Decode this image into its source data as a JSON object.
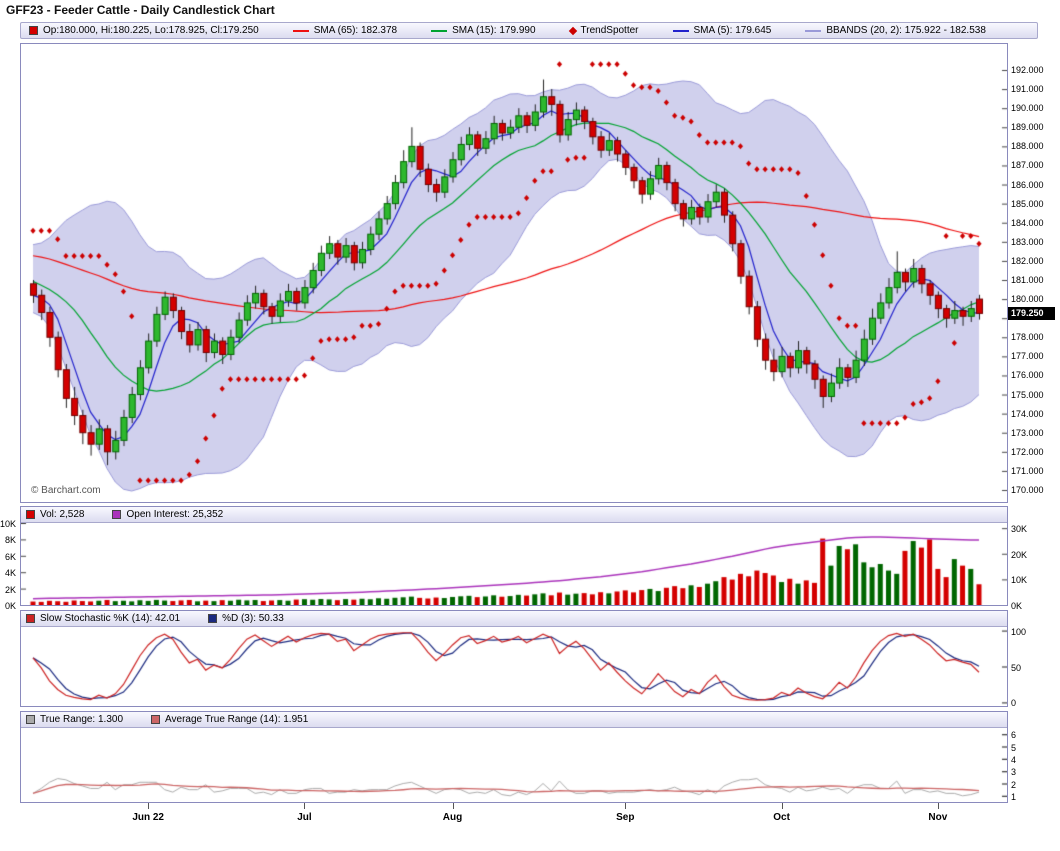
{
  "title": "GFF23 - Feeder Cattle - Daily Candlestick Chart",
  "watermark": "© Barchart.com",
  "legend": {
    "ohlc_label": "Op:180.000, Hi:180.225, Lo:178.925, Cl:179.250",
    "sma65_label": "SMA (65): 182.378",
    "sma15_label": "SMA (15): 179.990",
    "trendspotter_label": "TrendSpotter",
    "sma5_label": "SMA (5): 179.645",
    "bbands_label": "BBANDS (20, 2): 175.922 - 182.538"
  },
  "panels": {
    "volume": {
      "vol_label": "Vol: 2,528",
      "oi_label": "Open Interest: 25,352"
    },
    "stochastic": {
      "k_label": "Slow Stochastic %K (14): 42.01",
      "d_label": "%D (3): 50.33"
    },
    "truerange": {
      "tr_label": "True Range: 1.300",
      "atr_label": "Average True Range (14): 1.951"
    }
  },
  "colors": {
    "up": "#2eb82e",
    "up_border": "#006600",
    "down": "#d40000",
    "down_border": "#700000",
    "wick": "#222222",
    "sma65": "#ee1111",
    "sma15": "#00a330",
    "sma5": "#2222cc",
    "bband_fill": "rgba(150,150,215,0.45)",
    "bband_edge": "#9a9ad8",
    "trendspotter": "#cc0000",
    "open_interest": "#aa33bb",
    "stoch_k": "#cc2222",
    "stoch_d": "#1b2a80",
    "tr": "#aaaaaa",
    "atr": "#cc6666",
    "last_price_bg": "#000000",
    "last_price_fg": "#ffffff"
  },
  "chart_data": {
    "type": "candlestick",
    "title": "GFF23 - Feeder Cattle - Daily Candlestick Chart",
    "x_axis": {
      "labels": [
        "Jun 22",
        "Jul",
        "Aug",
        "Sep",
        "Oct",
        "Nov"
      ],
      "tick_indices": [
        14,
        33,
        51,
        72,
        91,
        110
      ]
    },
    "price_axis": {
      "min": 170,
      "max": 192,
      "step": 1,
      "label_decimals": 3,
      "last_price": "179.250",
      "last_price_value": 179.25
    },
    "indicators_last": {
      "sma65": 182.378,
      "sma15": 179.99,
      "sma5": 179.645,
      "bb_upper": 182.538,
      "bb_lower": 175.922
    },
    "ohlc": [
      [
        180.8,
        181.0,
        179.8,
        180.2
      ],
      [
        180.2,
        180.5,
        178.9,
        179.3
      ],
      [
        179.3,
        179.6,
        177.5,
        178.0
      ],
      [
        178.0,
        178.3,
        175.9,
        176.3
      ],
      [
        176.3,
        176.6,
        174.3,
        174.8
      ],
      [
        174.8,
        175.4,
        173.4,
        173.9
      ],
      [
        173.9,
        174.2,
        172.4,
        173.0
      ],
      [
        173.0,
        173.4,
        171.8,
        172.4
      ],
      [
        172.4,
        173.7,
        172.1,
        173.2
      ],
      [
        173.2,
        173.4,
        171.3,
        172.0
      ],
      [
        172.0,
        173.1,
        171.6,
        172.6
      ],
      [
        172.6,
        174.2,
        172.3,
        173.8
      ],
      [
        173.8,
        175.4,
        173.5,
        175.0
      ],
      [
        175.0,
        176.8,
        174.7,
        176.4
      ],
      [
        176.4,
        178.2,
        176.1,
        177.8
      ],
      [
        177.8,
        179.6,
        177.5,
        179.2
      ],
      [
        179.2,
        180.4,
        178.9,
        180.1
      ],
      [
        180.1,
        180.3,
        179.0,
        179.4
      ],
      [
        179.4,
        179.6,
        177.9,
        178.3
      ],
      [
        178.3,
        178.7,
        177.2,
        177.6
      ],
      [
        177.6,
        178.8,
        177.3,
        178.4
      ],
      [
        178.4,
        178.6,
        176.7,
        177.2
      ],
      [
        177.2,
        178.2,
        176.9,
        177.8
      ],
      [
        177.8,
        178.0,
        176.6,
        177.1
      ],
      [
        177.1,
        178.4,
        176.8,
        178.0
      ],
      [
        178.0,
        179.3,
        177.7,
        178.9
      ],
      [
        178.9,
        180.2,
        178.6,
        179.8
      ],
      [
        179.8,
        180.7,
        179.5,
        180.3
      ],
      [
        180.3,
        180.5,
        179.2,
        179.6
      ],
      [
        179.6,
        179.8,
        178.7,
        179.1
      ],
      [
        179.1,
        180.3,
        178.8,
        179.9
      ],
      [
        179.9,
        180.8,
        179.6,
        180.4
      ],
      [
        180.4,
        180.6,
        179.4,
        179.8
      ],
      [
        179.8,
        181.0,
        179.5,
        180.6
      ],
      [
        180.6,
        181.9,
        180.3,
        181.5
      ],
      [
        181.5,
        182.8,
        181.2,
        182.4
      ],
      [
        182.4,
        183.3,
        182.1,
        182.9
      ],
      [
        182.9,
        183.1,
        181.8,
        182.2
      ],
      [
        182.2,
        183.2,
        181.9,
        182.8
      ],
      [
        182.8,
        183.0,
        181.5,
        181.9
      ],
      [
        181.9,
        183.0,
        181.6,
        182.6
      ],
      [
        182.6,
        183.8,
        182.3,
        183.4
      ],
      [
        183.4,
        184.6,
        183.1,
        184.2
      ],
      [
        184.2,
        185.4,
        183.9,
        185.0
      ],
      [
        185.0,
        186.5,
        184.7,
        186.1
      ],
      [
        186.1,
        187.8,
        185.8,
        187.2
      ],
      [
        187.2,
        189.0,
        186.9,
        188.0
      ],
      [
        188.0,
        188.2,
        186.4,
        186.8
      ],
      [
        186.8,
        187.1,
        185.6,
        186.0
      ],
      [
        186.0,
        186.3,
        185.1,
        185.6
      ],
      [
        185.6,
        186.8,
        185.3,
        186.4
      ],
      [
        186.4,
        187.7,
        186.1,
        187.3
      ],
      [
        187.3,
        188.5,
        187.0,
        188.1
      ],
      [
        188.1,
        189.0,
        187.8,
        188.6
      ],
      [
        188.6,
        188.8,
        187.5,
        187.9
      ],
      [
        187.9,
        188.8,
        187.6,
        188.4
      ],
      [
        188.4,
        189.6,
        188.1,
        189.2
      ],
      [
        189.2,
        189.4,
        188.3,
        188.7
      ],
      [
        188.7,
        189.4,
        188.4,
        189.0
      ],
      [
        189.0,
        190.0,
        188.7,
        189.6
      ],
      [
        189.6,
        189.8,
        188.7,
        189.1
      ],
      [
        189.1,
        190.2,
        188.8,
        189.8
      ],
      [
        189.8,
        191.5,
        189.5,
        190.6
      ],
      [
        190.6,
        191.0,
        189.6,
        190.2
      ],
      [
        190.2,
        190.4,
        188.2,
        188.6
      ],
      [
        188.6,
        189.8,
        188.3,
        189.4
      ],
      [
        189.4,
        190.3,
        189.1,
        189.9
      ],
      [
        189.9,
        190.1,
        188.9,
        189.3
      ],
      [
        189.3,
        189.5,
        188.1,
        188.5
      ],
      [
        188.5,
        188.8,
        187.4,
        187.8
      ],
      [
        187.8,
        188.7,
        187.5,
        188.3
      ],
      [
        188.3,
        188.5,
        187.2,
        187.6
      ],
      [
        187.6,
        187.8,
        186.5,
        186.9
      ],
      [
        186.9,
        187.1,
        185.8,
        186.2
      ],
      [
        186.2,
        186.4,
        185.0,
        185.5
      ],
      [
        185.5,
        186.7,
        185.2,
        186.3
      ],
      [
        186.3,
        187.4,
        186.0,
        187.0
      ],
      [
        187.0,
        187.2,
        185.7,
        186.1
      ],
      [
        186.1,
        186.3,
        184.6,
        185.0
      ],
      [
        185.0,
        185.2,
        183.8,
        184.2
      ],
      [
        184.2,
        185.2,
        183.9,
        184.8
      ],
      [
        184.8,
        185.0,
        183.9,
        184.3
      ],
      [
        184.3,
        185.5,
        184.0,
        185.1
      ],
      [
        185.1,
        186.0,
        184.8,
        185.6
      ],
      [
        185.6,
        185.8,
        184.0,
        184.4
      ],
      [
        184.4,
        184.6,
        182.5,
        182.9
      ],
      [
        182.9,
        183.1,
        180.8,
        181.2
      ],
      [
        181.2,
        181.5,
        179.2,
        179.6
      ],
      [
        179.6,
        179.9,
        177.5,
        177.9
      ],
      [
        177.9,
        178.2,
        176.3,
        176.8
      ],
      [
        176.8,
        177.4,
        175.7,
        176.2
      ],
      [
        176.2,
        177.5,
        175.9,
        177.0
      ],
      [
        177.0,
        177.2,
        175.9,
        176.4
      ],
      [
        176.4,
        177.8,
        176.1,
        177.3
      ],
      [
        177.3,
        177.5,
        176.1,
        176.6
      ],
      [
        176.6,
        176.8,
        175.3,
        175.8
      ],
      [
        175.8,
        176.0,
        174.3,
        174.9
      ],
      [
        174.9,
        176.1,
        174.6,
        175.6
      ],
      [
        175.6,
        176.9,
        175.3,
        176.4
      ],
      [
        176.4,
        176.6,
        175.4,
        175.9
      ],
      [
        175.9,
        177.3,
        175.6,
        176.8
      ],
      [
        176.8,
        178.4,
        176.5,
        177.9
      ],
      [
        177.9,
        179.5,
        177.6,
        179.0
      ],
      [
        179.0,
        180.3,
        178.7,
        179.8
      ],
      [
        179.8,
        181.1,
        179.5,
        180.6
      ],
      [
        180.6,
        182.5,
        180.3,
        181.4
      ],
      [
        181.4,
        181.6,
        180.4,
        180.9
      ],
      [
        180.9,
        182.1,
        180.6,
        181.6
      ],
      [
        181.6,
        181.8,
        180.3,
        180.8
      ],
      [
        180.8,
        181.0,
        179.7,
        180.2
      ],
      [
        180.2,
        180.4,
        179.0,
        179.5
      ],
      [
        179.5,
        179.7,
        178.5,
        179.0
      ],
      [
        179.0,
        179.9,
        178.7,
        179.4
      ],
      [
        179.4,
        179.6,
        178.6,
        179.1
      ],
      [
        179.1,
        179.9,
        178.8,
        179.5
      ],
      [
        180.0,
        180.225,
        178.925,
        179.25
      ]
    ],
    "volume": {
      "last": 2528,
      "left_axis_labels": [
        "10K",
        "8K",
        "6K",
        "4K",
        "2K",
        "0K"
      ],
      "left_axis_values": [
        10000,
        8000,
        6000,
        4000,
        2000,
        0
      ],
      "right_axis_labels": [
        "30K",
        "20K",
        "10K",
        "0K"
      ],
      "right_axis_values": [
        30000,
        20000,
        10000,
        0
      ],
      "values": [
        420,
        380,
        510,
        460,
        390,
        550,
        480,
        430,
        520,
        610,
        470,
        520,
        440,
        580,
        500,
        620,
        540,
        480,
        560,
        610,
        450,
        530,
        470,
        590,
        520,
        640,
        560,
        610,
        480,
        550,
        600,
        520,
        660,
        710,
        640,
        730,
        680,
        590,
        720,
        650,
        760,
        700,
        820,
        760,
        880,
        940,
        1020,
        870,
        790,
        910,
        850,
        980,
        1060,
        1120,
        960,
        1040,
        1180,
        1010,
        1090,
        1240,
        1150,
        1300,
        1420,
        1180,
        1520,
        1260,
        1380,
        1450,
        1300,
        1560,
        1420,
        1650,
        1780,
        1540,
        1820,
        1960,
        1700,
        2100,
        2300,
        2050,
        2400,
        2200,
        2600,
        2900,
        3400,
        3100,
        3800,
        3500,
        4200,
        3900,
        3600,
        2800,
        3200,
        2600,
        3000,
        2700,
        8100,
        4800,
        7200,
        6800,
        7400,
        5200,
        4600,
        5000,
        4200,
        3800,
        6600,
        7800,
        7000,
        8000,
        4400,
        3400,
        5600,
        4800,
        4400,
        2528
      ],
      "open_interest_last": 25352,
      "open_interest": [
        2400,
        2500,
        2600,
        2650,
        2700,
        2750,
        2800,
        2850,
        2900,
        2950,
        3000,
        3050,
        3100,
        3150,
        3200,
        3250,
        3300,
        3350,
        3400,
        3450,
        3500,
        3550,
        3600,
        3650,
        3700,
        3750,
        3800,
        3850,
        3900,
        3950,
        4000,
        4100,
        4200,
        4300,
        4400,
        4500,
        4600,
        4700,
        4800,
        4900,
        5000,
        5150,
        5300,
        5450,
        5600,
        5750,
        5900,
        6050,
        6200,
        6350,
        6500,
        6700,
        6900,
        7100,
        7300,
        7500,
        7700,
        7900,
        8100,
        8300,
        8500,
        8750,
        9000,
        9250,
        9500,
        9800,
        10100,
        10400,
        10700,
        11000,
        11400,
        11800,
        12200,
        12600,
        13000,
        13500,
        14000,
        14500,
        15000,
        15500,
        16000,
        16600,
        17200,
        17800,
        18400,
        19000,
        19700,
        20400,
        21100,
        21800,
        22400,
        22900,
        23400,
        23800,
        24200,
        24600,
        25000,
        25400,
        25800,
        26100,
        26300,
        26400,
        26500,
        26500,
        26400,
        26300,
        26200,
        26100,
        26000,
        25900,
        25800,
        25700,
        25600,
        25500,
        25400,
        25352
      ]
    },
    "stochastic": {
      "k_last": 42.01,
      "d_last": 50.33,
      "axis_labels": [
        "100",
        "50",
        "0"
      ],
      "axis_values": [
        100,
        50,
        0
      ],
      "k": [
        62,
        48,
        30,
        18,
        10,
        7,
        5,
        4,
        10,
        6,
        12,
        25,
        45,
        65,
        80,
        90,
        95,
        88,
        70,
        55,
        60,
        45,
        52,
        48,
        60,
        75,
        88,
        94,
        86,
        78,
        85,
        92,
        84,
        90,
        94,
        96,
        95,
        85,
        88,
        72,
        80,
        88,
        93,
        95,
        96,
        97,
        97,
        85,
        70,
        58,
        68,
        80,
        90,
        93,
        82,
        86,
        92,
        84,
        87,
        92,
        83,
        89,
        95,
        90,
        68,
        78,
        85,
        75,
        60,
        45,
        55,
        42,
        30,
        20,
        12,
        25,
        40,
        28,
        15,
        8,
        18,
        12,
        28,
        38,
        22,
        10,
        6,
        4,
        3,
        4,
        6,
        14,
        10,
        20,
        13,
        8,
        5,
        15,
        28,
        20,
        35,
        55,
        72,
        85,
        93,
        96,
        92,
        95,
        88,
        80,
        68,
        58,
        60,
        56,
        53,
        42.01
      ]
    },
    "true_range": {
      "tr_last": 1.3,
      "atr_last": 1.951,
      "axis_labels": [
        "6",
        "5",
        "4",
        "3",
        "2",
        "1"
      ],
      "axis_values": [
        6,
        5,
        4,
        3,
        2,
        1
      ]
    }
  }
}
